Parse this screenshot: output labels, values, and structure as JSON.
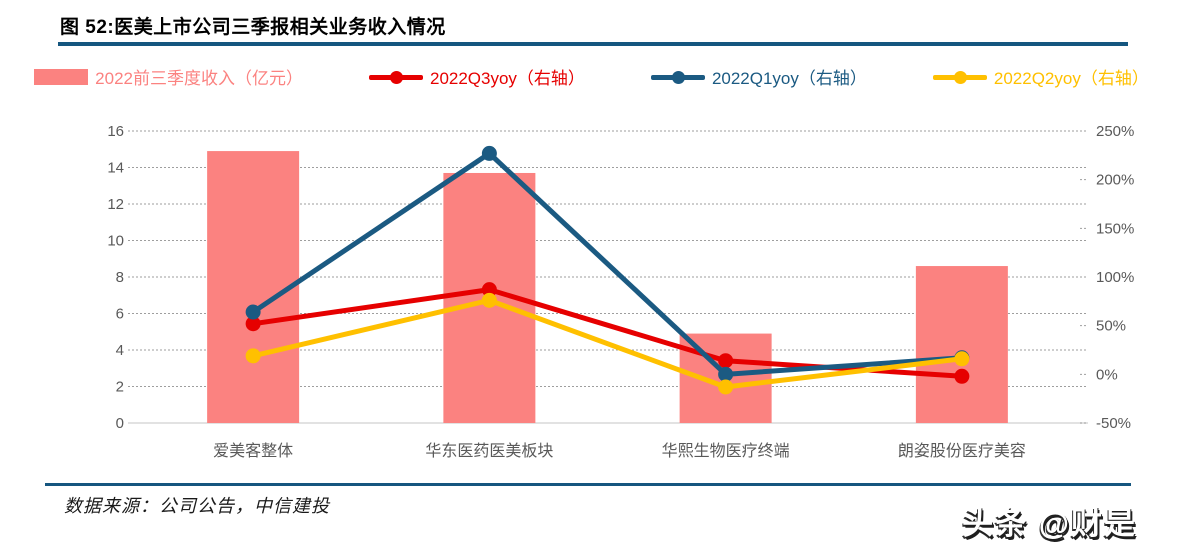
{
  "title": "图 52:医美上市公司三季报相关业务收入情况",
  "legend": [
    {
      "label": "2022前三季度收入（亿元）",
      "type": "bar",
      "color": "#FB8280"
    },
    {
      "label": "2022Q3yoy（右轴）",
      "type": "line",
      "color": "#E60000"
    },
    {
      "label": "2022Q1yoy（右轴）",
      "type": "line",
      "color": "#1B5A82"
    },
    {
      "label": "2022Q2yoy（右轴）",
      "type": "line",
      "color": "#FFC000"
    }
  ],
  "chart_data": {
    "type": "bar",
    "subtype": "bar+line combo, dual axis",
    "categories": [
      "爱美客整体",
      "华东医药医美板块",
      "华熙生物医疗终端",
      "朗姿股份医疗美容"
    ],
    "bar_series": {
      "name": "2022前三季度收入（亿元）",
      "axis": "left",
      "color": "#FB8280",
      "values": [
        14.9,
        13.7,
        4.9,
        8.6
      ]
    },
    "line_series": [
      {
        "name": "2022Q3yoy（右轴）",
        "axis": "right",
        "color": "#E60000",
        "values": [
          52,
          87,
          14,
          -2
        ]
      },
      {
        "name": "2022Q1yoy（右轴）",
        "axis": "right",
        "color": "#1B5A82",
        "values": [
          64,
          227,
          0,
          17
        ]
      },
      {
        "name": "2022Q2yoy（右轴）",
        "axis": "right",
        "color": "#FFC000",
        "values": [
          19,
          76,
          -13,
          16
        ]
      }
    ],
    "left_axis": {
      "ticks": [
        16,
        14,
        12,
        10,
        8,
        6,
        4,
        2,
        0
      ],
      "range": [
        0,
        16
      ]
    },
    "right_axis": {
      "ticks": [
        250,
        200,
        150,
        100,
        50,
        0,
        -50
      ],
      "suffix": "%",
      "range": [
        -50,
        250
      ]
    },
    "grid": "horizontal dashed at left-axis ticks",
    "legend_position": "top"
  },
  "footer": {
    "source": "数据来源：公司公告，中信建投"
  },
  "watermark": "头条 @财是",
  "colors": {
    "accent_rule": "#15567F",
    "axis_text": "#595959",
    "gridline": "#9E9E9E",
    "axis_line": "#D9D9D9",
    "background": "#FFFFFF"
  }
}
